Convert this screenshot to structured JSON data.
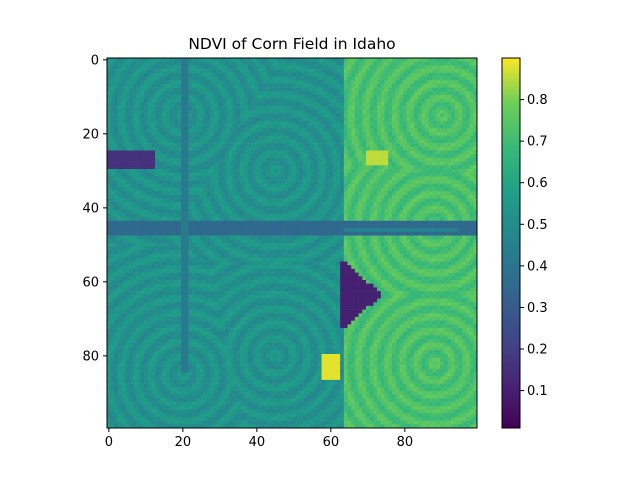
{
  "chart_data": {
    "type": "heatmap",
    "title": "NDVI of Corn Field in Idaho",
    "xlabel": "",
    "ylabel": "",
    "grid": false,
    "x_range": [
      0,
      99
    ],
    "y_range": [
      0,
      99
    ],
    "x_ticks": [
      "0",
      "20",
      "40",
      "60",
      "80"
    ],
    "y_ticks": [
      "0",
      "20",
      "40",
      "60",
      "80"
    ],
    "colormap": "viridis",
    "value_range": [
      0.01,
      0.9
    ],
    "colorbar_ticks": [
      "0.1",
      "0.2",
      "0.3",
      "0.4",
      "0.5",
      "0.6",
      "0.7",
      "0.8"
    ],
    "regions": [
      {
        "name": "left-field",
        "x": [
          0,
          64
        ],
        "y": [
          0,
          99
        ],
        "ndvi": 0.52
      },
      {
        "name": "right-field",
        "x": [
          64,
          99
        ],
        "y": [
          0,
          99
        ],
        "ndvi": 0.72
      },
      {
        "name": "upper-left-dark-strip",
        "x": [
          0,
          12
        ],
        "y": [
          25,
          29
        ],
        "ndvi": 0.15
      },
      {
        "name": "middle-road",
        "x": [
          0,
          99
        ],
        "y": [
          44,
          47
        ],
        "ndvi": 0.35
      },
      {
        "name": "dark-gap",
        "x": [
          63,
          73
        ],
        "y": [
          55,
          72
        ],
        "ndvi": 0.1
      },
      {
        "name": "bright-spot-upper",
        "x": [
          70,
          75
        ],
        "y": [
          25,
          28
        ],
        "ndvi": 0.85
      },
      {
        "name": "bright-spot-lower",
        "x": [
          58,
          62
        ],
        "y": [
          80,
          86
        ],
        "ndvi": 0.88
      }
    ]
  }
}
